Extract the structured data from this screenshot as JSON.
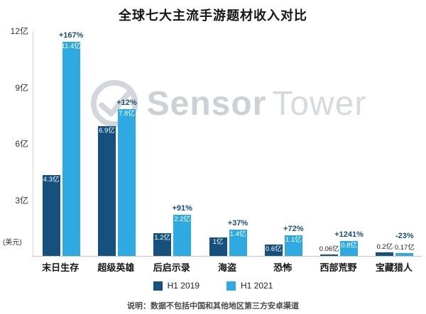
{
  "title": "全球七大主流手游题材收入对比",
  "watermark": {
    "part1": "Sensor",
    "part2": "Tower"
  },
  "y_axis": {
    "unit": "(美元)"
  },
  "legend": [
    {
      "label": "H1 2019",
      "color": "#15507E"
    },
    {
      "label": "H1 2021",
      "color": "#2EA9E2"
    }
  ],
  "footer_note": "说明：数据不包括中国和其他地区第三方安卓渠道",
  "chart_data": {
    "type": "bar",
    "title": "全球七大主流手游题材收入对比",
    "unit": "亿 (美元)",
    "categories": [
      "末日生存",
      "超级英雄",
      "后启示录",
      "海盗",
      "恐怖",
      "西部荒野",
      "宝藏猎人"
    ],
    "series": [
      {
        "name": "H1 2019",
        "color": "#15507E",
        "values": [
          4.3,
          6.9,
          1.2,
          1.0,
          0.6,
          0.06,
          0.2
        ],
        "labels": [
          "4.3亿",
          "6.9亿",
          "1.2亿",
          "1亿",
          "0.6亿",
          "0.06亿",
          "0.2亿"
        ]
      },
      {
        "name": "H1 2021",
        "color": "#2EA9E2",
        "values": [
          11.4,
          7.8,
          2.2,
          1.4,
          1.1,
          0.8,
          0.17
        ],
        "labels": [
          "11.4亿",
          "7.8亿",
          "2.2亿",
          "1.4亿",
          "1.1亿",
          "0.8亿",
          "0.17亿"
        ]
      }
    ],
    "change_labels": [
      "+167%",
      "+12%",
      "+91%",
      "+37%",
      "+72%",
      "+1241%",
      "-23%"
    ],
    "change_label_color": "#174F7C",
    "ylim": [
      0,
      12
    ],
    "y_ticks": [
      {
        "value": 3,
        "label": "3亿"
      },
      {
        "value": 6,
        "label": "6亿"
      },
      {
        "value": 9,
        "label": "9亿"
      },
      {
        "value": 12,
        "label": "12亿"
      }
    ],
    "legend_position": "bottom",
    "grid": false
  }
}
